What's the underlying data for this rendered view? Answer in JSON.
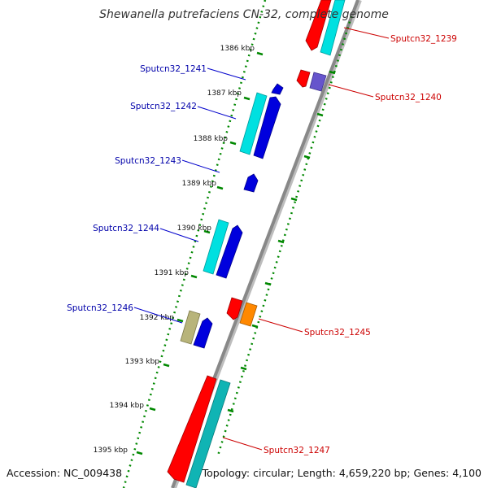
{
  "title": "Shewanella putrefaciens CN-32, complete genome",
  "footer": {
    "accession": "Accession: NC_009438",
    "summary": "Topology: circular; Length: 4,659,220 bp; Genes: 4,100"
  },
  "colors": {
    "forward_label": "#0000aa",
    "reverse_label": "#cc0000",
    "leader_forward": "#0000cc",
    "leader_reverse": "#cc0000",
    "tick": "#008800",
    "backbone": "#888888",
    "blue_cds": "#0000dd",
    "cyan_gene": "#00e0e0",
    "teal_gene": "#10b4b4",
    "red_gene": "#ff0000",
    "purple_cds": "#6655cc",
    "orange_cds": "#ff8800",
    "olive_gene": "#b8b47a"
  },
  "ticks": [
    {
      "label": "1386 kbp"
    },
    {
      "label": "1387 kbp"
    },
    {
      "label": "1388 kbp"
    },
    {
      "label": "1389 kbp"
    },
    {
      "label": "1390 kbp"
    },
    {
      "label": "1391 kbp"
    },
    {
      "label": "1392 kbp"
    },
    {
      "label": "1393 kbp"
    },
    {
      "label": "1394 kbp"
    },
    {
      "label": "1395 kbp"
    }
  ],
  "genes": {
    "g1239": {
      "label": "Sputcn32_1239",
      "strand": "reverse"
    },
    "g1240": {
      "label": "Sputcn32_1240",
      "strand": "reverse"
    },
    "g1241": {
      "label": "Sputcn32_1241",
      "strand": "forward"
    },
    "g1242": {
      "label": "Sputcn32_1242",
      "strand": "forward"
    },
    "g1243": {
      "label": "Sputcn32_1243",
      "strand": "forward"
    },
    "g1244": {
      "label": "Sputcn32_1244",
      "strand": "forward"
    },
    "g1245": {
      "label": "Sputcn32_1245",
      "strand": "reverse"
    },
    "g1246": {
      "label": "Sputcn32_1246",
      "strand": "forward"
    },
    "g1247": {
      "label": "Sputcn32_1247",
      "strand": "reverse"
    }
  }
}
